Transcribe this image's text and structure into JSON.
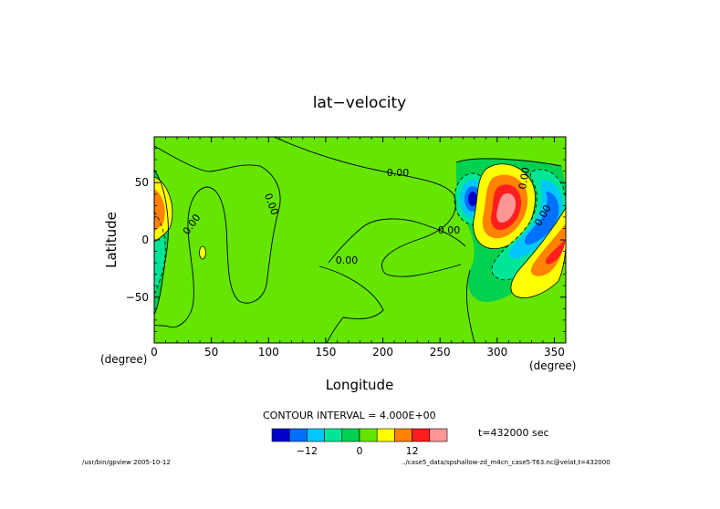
{
  "chart_data": {
    "type": "heatmap",
    "title": "lat−velocity",
    "xlabel": "Longitude",
    "ylabel": "Latitude",
    "x_unit": "(degree)",
    "y_unit": "(degree)",
    "xlim": [
      0,
      360
    ],
    "ylim": [
      -90,
      90
    ],
    "x_ticks": [
      "0",
      "50",
      "100",
      "150",
      "200",
      "250",
      "300",
      "350"
    ],
    "y_ticks": [
      "50",
      "0",
      "−50"
    ],
    "contour_interval_text": "CONTOUR INTERVAL = 4.000E+00",
    "time_text": "t=432000 sec",
    "contour_labels": [
      "0.00",
      "0.00",
      "0.00",
      "0.00",
      "0.00",
      "0.00",
      "0.00"
    ],
    "colorbar": {
      "levels": [
        -16,
        -12,
        -8,
        -4,
        0,
        4,
        8,
        12,
        16,
        20
      ],
      "tick_labels": [
        "−12",
        "0",
        "12"
      ],
      "colors": [
        "#0000c8",
        "#0070ff",
        "#00c8ff",
        "#00e696",
        "#00d250",
        "#64e600",
        "#ffff00",
        "#ff8200",
        "#ff1e1e",
        "#ff9696"
      ]
    },
    "features": [
      {
        "lon": 8,
        "lat": 35,
        "value": 12,
        "sign": "positive"
      },
      {
        "lon": 10,
        "lat": -8,
        "value": -8,
        "sign": "negative"
      },
      {
        "lon": 42,
        "lat": -12,
        "value": 4,
        "sign": "positive"
      },
      {
        "lon": 278,
        "lat": 35,
        "value": -18,
        "sign": "negative"
      },
      {
        "lon": 308,
        "lat": 28,
        "value": 20,
        "sign": "positive"
      },
      {
        "lon": 322,
        "lat": 15,
        "value": -14,
        "sign": "negative"
      },
      {
        "lon": 338,
        "lat": -5,
        "value": 14,
        "sign": "positive"
      }
    ]
  },
  "footer": {
    "left": "/usr/bin/gpview 2005-10-12",
    "right": "../case5_data/spshallow-zd_m4cn_case5-T63.nc@velat,t=432000"
  }
}
